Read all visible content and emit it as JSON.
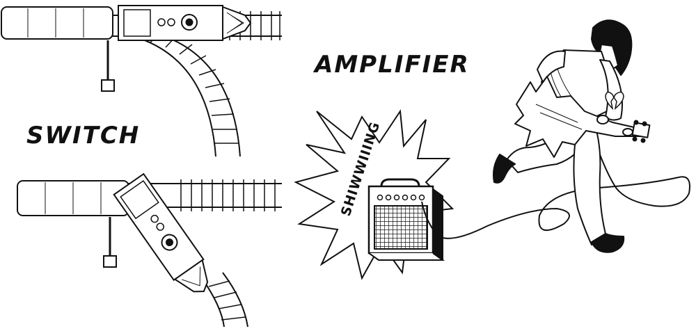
{
  "labels": {
    "switch": "SWITCH",
    "amplifier": "AMPLIFIER",
    "sound": "SHIWWIIING"
  },
  "colors": {
    "ink": "#111111",
    "paper": "#ffffff",
    "shade": "#bbbbbb"
  }
}
